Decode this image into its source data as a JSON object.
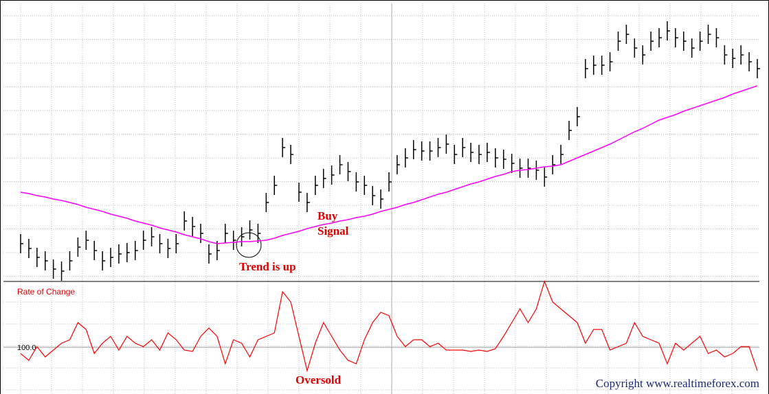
{
  "chart_data": [
    {
      "type": "hlc",
      "color": "#000000",
      "grid": true,
      "ylim": [
        0,
        405
      ],
      "high": [
        69,
        62,
        49,
        44,
        32,
        29,
        44,
        64,
        74,
        59,
        44,
        49,
        54,
        56,
        59,
        74,
        79,
        69,
        62,
        69,
        102,
        94,
        84,
        54,
        59,
        84,
        74,
        79,
        89,
        84,
        129,
        154,
        209,
        199,
        144,
        129,
        154,
        164,
        169,
        184,
        174,
        159,
        154,
        139,
        134,
        159,
        184,
        194,
        206,
        204,
        204,
        209,
        214,
        199,
        209,
        202,
        199,
        202,
        194,
        192,
        186,
        179,
        179,
        176,
        166,
        184,
        199,
        234,
        254,
        324,
        329,
        329,
        334,
        364,
        374,
        354,
        344,
        364,
        369,
        379,
        369,
        364,
        354,
        364,
        374,
        369,
        344,
        339,
        344,
        334,
        324
      ],
      "low": [
        41,
        34,
        21,
        16,
        4,
        1,
        16,
        36,
        46,
        31,
        16,
        21,
        26,
        28,
        31,
        46,
        51,
        41,
        34,
        41,
        74,
        66,
        56,
        26,
        31,
        56,
        46,
        51,
        61,
        56,
        101,
        126,
        181,
        171,
        116,
        101,
        126,
        136,
        141,
        156,
        146,
        131,
        126,
        111,
        106,
        131,
        156,
        166,
        178,
        176,
        176,
        181,
        186,
        171,
        181,
        174,
        171,
        174,
        166,
        164,
        158,
        151,
        151,
        148,
        138,
        156,
        171,
        206,
        226,
        296,
        301,
        301,
        306,
        336,
        346,
        326,
        316,
        336,
        341,
        351,
        341,
        336,
        326,
        336,
        346,
        341,
        316,
        311,
        316,
        306,
        296
      ],
      "close": [
        55,
        48,
        35,
        30,
        18,
        15,
        30,
        50,
        60,
        45,
        30,
        35,
        40,
        42,
        45,
        60,
        65,
        55,
        48,
        55,
        88,
        80,
        70,
        40,
        45,
        70,
        60,
        65,
        75,
        70,
        115,
        140,
        195,
        185,
        130,
        115,
        140,
        150,
        155,
        170,
        160,
        145,
        140,
        125,
        120,
        145,
        170,
        180,
        192,
        190,
        190,
        195,
        200,
        185,
        195,
        188,
        185,
        188,
        180,
        178,
        172,
        165,
        165,
        162,
        152,
        170,
        185,
        220,
        240,
        310,
        315,
        315,
        320,
        350,
        360,
        340,
        330,
        350,
        355,
        365,
        355,
        350,
        340,
        350,
        360,
        355,
        330,
        325,
        330,
        320,
        310
      ],
      "overlay": {
        "color": "#ff00ff",
        "values": [
          130,
          128,
          125,
          123,
          120,
          118,
          115,
          112,
          108,
          105,
          102,
          98,
          95,
          92,
          88,
          85,
          82,
          78,
          75,
          72,
          68,
          65,
          62,
          58,
          55,
          56,
          57,
          58,
          58,
          59,
          60,
          63,
          67,
          70,
          73,
          77,
          80,
          83,
          85,
          88,
          90,
          93,
          95,
          98,
          102,
          105,
          108,
          112,
          115,
          119,
          123,
          127,
          130,
          134,
          138,
          142,
          145,
          149,
          153,
          156,
          160,
          162,
          163,
          165,
          167,
          168,
          170,
          175,
          180,
          185,
          190,
          195,
          200,
          206,
          212,
          218,
          223,
          229,
          235,
          239,
          243,
          248,
          252,
          256,
          260,
          264,
          268,
          273,
          277,
          281,
          285
        ]
      },
      "annotations": [
        "Trend is up",
        "Buy",
        "Signal"
      ]
    },
    {
      "type": "line",
      "title": "Rate of Change",
      "color": "#ff0000",
      "grid": true,
      "ylim": [
        93.6,
        109.6
      ],
      "yticks": [
        {
          "value": 100,
          "label": "100.0"
        }
      ],
      "values": [
        99.1,
        98.1,
        100.1,
        98.6,
        99.6,
        100.6,
        101.1,
        103.6,
        102.6,
        99.1,
        100.6,
        101.6,
        99.6,
        101.6,
        100.6,
        100.1,
        101.1,
        99.6,
        102.1,
        101.1,
        99.6,
        99.4,
        101.6,
        102.8,
        101.6,
        97.6,
        101.1,
        100.6,
        98.6,
        101.1,
        101.6,
        102.1,
        108.1,
        106.6,
        101.6,
        96.6,
        100.6,
        103.6,
        101.6,
        99.6,
        98.1,
        97.6,
        101.1,
        103.6,
        105.1,
        104.6,
        101.6,
        100.1,
        101.1,
        101.1,
        100.1,
        100.6,
        99.6,
        99.6,
        99.6,
        99.4,
        99.6,
        99.4,
        99.8,
        101.6,
        103.6,
        105.6,
        103.6,
        105.6,
        109.6,
        106.6,
        105.6,
        104.6,
        103.6,
        100.6,
        102.6,
        102.6,
        99.6,
        100.1,
        100.6,
        103.6,
        101.6,
        101.1,
        100.6,
        97.6,
        100.6,
        99.6,
        100.6,
        101.6,
        99.1,
        99.6,
        98.6,
        99.1,
        100.1,
        100.1,
        96.6
      ],
      "annotations": [
        "Oversold",
        "Copyright www.realtimeforex.com"
      ]
    }
  ]
}
